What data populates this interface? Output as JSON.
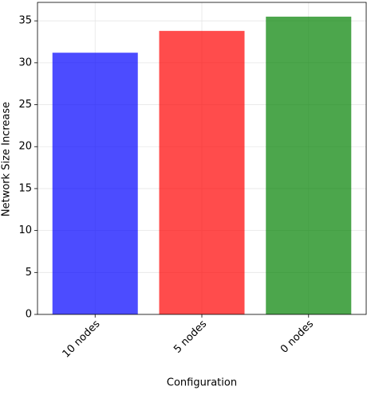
{
  "chart_data": {
    "type": "bar",
    "x_label": "Configuration",
    "y_label": "Network Size Increase",
    "categories": [
      "10 nodes",
      "5 nodes",
      "0 nodes"
    ],
    "values": [
      31.2,
      33.8,
      35.5
    ],
    "colors": [
      "#0000ff",
      "#ff0000",
      "#008000"
    ],
    "opacity": 0.7,
    "ylim": [
      0,
      37.2
    ],
    "yticks": [
      0,
      5,
      10,
      15,
      20,
      25,
      30,
      35
    ],
    "grid": true
  }
}
